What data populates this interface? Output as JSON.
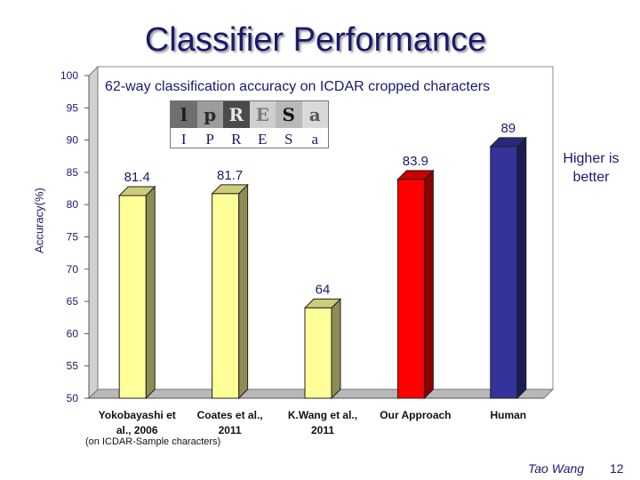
{
  "slide": {
    "title": "Classifier Performance",
    "higher_note": "Higher is better",
    "footnote": "(on ICDAR-Sample characters)",
    "author": "Tao Wang",
    "page_number": "12"
  },
  "char_strip": {
    "tiles": [
      {
        "glyph": "l",
        "bg": "#6f6f6f",
        "fg": "#1c1c1c"
      },
      {
        "glyph": "p",
        "bg": "#9c9c9c",
        "fg": "#2a2a2a"
      },
      {
        "glyph": "R",
        "bg": "#4a4a4a",
        "fg": "#e6e6e6"
      },
      {
        "glyph": "E",
        "bg": "#cfcfcf",
        "fg": "#7a7a7a"
      },
      {
        "glyph": "S",
        "bg": "#b8b8b8",
        "fg": "#101010"
      },
      {
        "glyph": "a",
        "bg": "#d9d9d9",
        "fg": "#5a5a5a"
      }
    ],
    "letters": [
      "I",
      "P",
      "R",
      "E",
      "S",
      "a"
    ]
  },
  "chart_data": {
    "type": "bar",
    "title": "62-way classification accuracy on ICDAR cropped characters",
    "xlabel": "",
    "ylabel": "Accuracy(%)",
    "ylim": [
      50,
      100
    ],
    "yticks": [
      50,
      55,
      60,
      65,
      70,
      75,
      80,
      85,
      90,
      95,
      100
    ],
    "grid": false,
    "categories": [
      [
        "Yokobayashi et",
        "al., 2006"
      ],
      [
        "Coates et al.,",
        "2011"
      ],
      [
        "K.Wang et al.,",
        "2011"
      ],
      [
        "Our Approach"
      ],
      [
        "Human"
      ]
    ],
    "values": [
      81.4,
      81.7,
      64,
      83.9,
      89
    ],
    "value_labels": [
      "81.4",
      "81.7",
      "64",
      "83.9",
      "89"
    ],
    "bar_colors": [
      "#ffff99",
      "#ffff99",
      "#ffff99",
      "#ff0000",
      "#333399"
    ],
    "label_colors": [
      "#1a1a6e",
      "#1a1a6e",
      "#1a1a6e",
      "#1a1a6e",
      "#1a1a6e"
    ]
  }
}
